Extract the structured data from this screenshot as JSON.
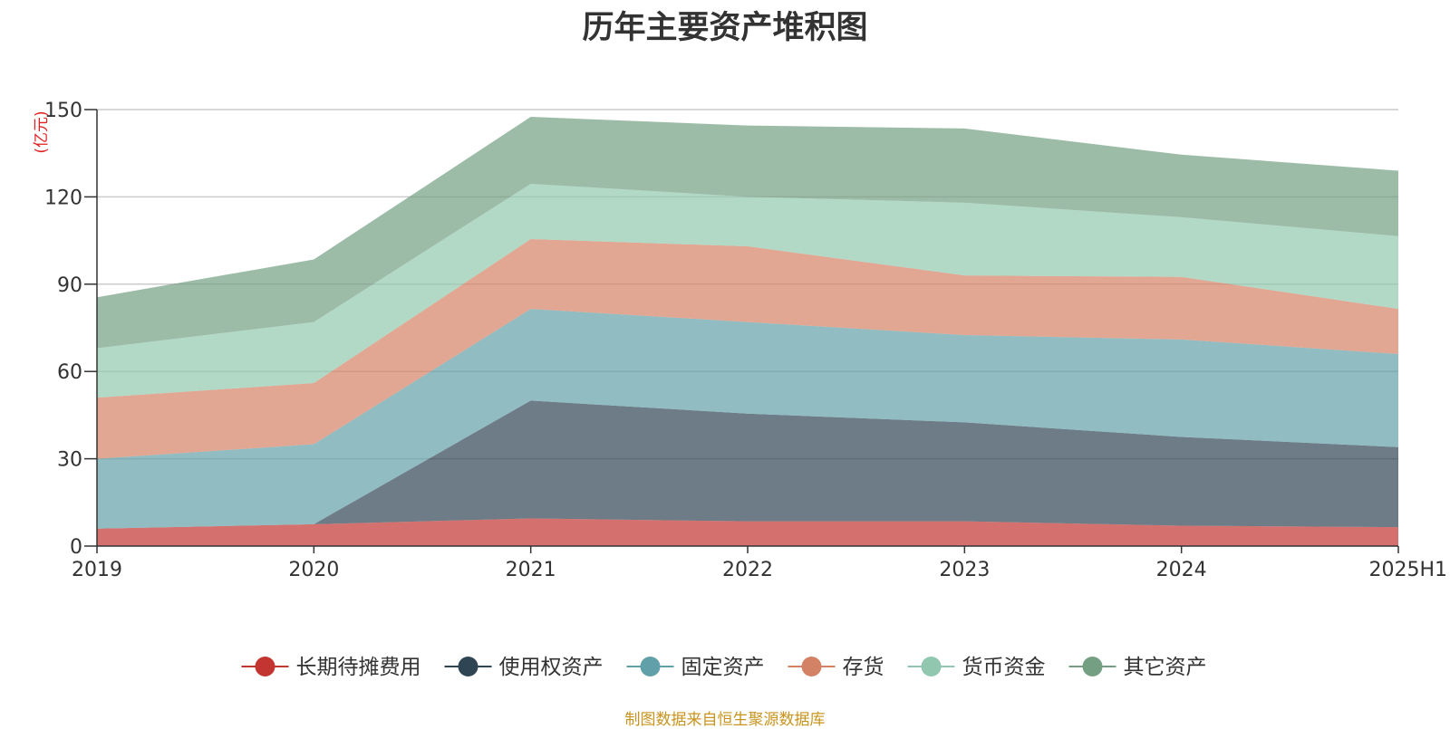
{
  "chart_data": {
    "type": "area",
    "stacked": true,
    "title": "历年主要资产堆积图",
    "y_unit": "(亿元)",
    "categories": [
      "2019",
      "2020",
      "2021",
      "2022",
      "2023",
      "2024",
      "2025H1"
    ],
    "ylim": [
      0,
      150
    ],
    "yticks": [
      0,
      30,
      60,
      90,
      120,
      150
    ],
    "grid": true,
    "legend_position": "bottom",
    "series": [
      {
        "name": "长期待摊费用",
        "color": "#c23531",
        "values": [
          6.0,
          7.5,
          9.5,
          8.5,
          8.5,
          7.0,
          6.5
        ]
      },
      {
        "name": "使用权资产",
        "color": "#2f4554",
        "values": [
          0.0,
          0.0,
          40.5,
          37.0,
          34.0,
          30.5,
          27.5
        ]
      },
      {
        "name": "固定资产",
        "color": "#61a0a8",
        "values": [
          24.0,
          27.5,
          31.5,
          31.5,
          30.0,
          33.5,
          32.0
        ]
      },
      {
        "name": "存货",
        "color": "#d48265",
        "values": [
          21.0,
          21.0,
          24.0,
          26.0,
          20.5,
          21.5,
          15.5
        ]
      },
      {
        "name": "货币资金",
        "color": "#91c7ae",
        "values": [
          17.0,
          21.0,
          19.0,
          17.0,
          25.0,
          20.5,
          25.0
        ]
      },
      {
        "name": "其它资产",
        "color": "#749f83",
        "values": [
          17.5,
          21.5,
          23.0,
          24.5,
          25.5,
          21.5,
          22.5
        ]
      }
    ]
  },
  "source_note": "制图数据来自恒生聚源数据库",
  "colors": {
    "unit_label": "#e01f1f",
    "source_note": "#c8941e",
    "grid": "#cccccc",
    "axis": "#333333"
  }
}
